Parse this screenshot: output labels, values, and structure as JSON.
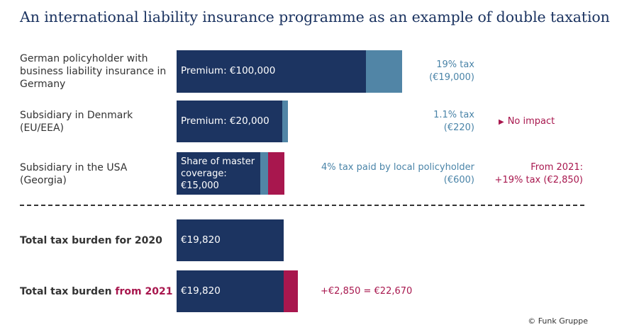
{
  "title": "An international liability insurance programme as an example of double taxation",
  "colors": {
    "navy": "#1c3461",
    "steel": "#5185a6",
    "magenta": "#a8174e",
    "tax_text": "#4a84a8"
  },
  "rows": {
    "germany": {
      "label": "German policyholder with business liability insurance in Germany",
      "bar_label": "Premium: €100,000",
      "tax_line1": "19% tax",
      "tax_line2": "(€19,000)"
    },
    "denmark": {
      "label_line1": "Subsidiary in Denmark",
      "label_line2": "(EU/EEA)",
      "bar_label": "Premium: €20,000",
      "tax_line1": "1.1% tax",
      "tax_line2": "(€220)",
      "note": "No impact",
      "note_icon": "triangle-right-icon"
    },
    "usa": {
      "label_line1": "Subsidiary in the USA",
      "label_line2": "(Georgia)",
      "bar_label": "Share of master coverage: €15,000",
      "tax_line1": "4% tax paid by local policyholder",
      "tax_line2": "(€600)",
      "note_line1": "From 2021:",
      "note_line2": "+19% tax (€2,850)"
    },
    "total2020": {
      "label": "Total tax burden for 2020",
      "bar_label": "€19,820"
    },
    "total2021": {
      "label_prefix": "Total tax burden",
      "label_highlight": "from 2021",
      "bar_label": "€19,820",
      "annotation": "+€2,850 = €22,670"
    }
  },
  "credit": "© Funk Gruppe",
  "chart_data": {
    "type": "bar",
    "orientation": "horizontal",
    "stacked": true,
    "unit": "€",
    "categories": [
      "German policyholder",
      "Subsidiary in Denmark",
      "Subsidiary in the USA",
      "Total tax burden for 2020",
      "Total tax burden from 2021"
    ],
    "series": [
      {
        "name": "Premium",
        "color": "#1c3461",
        "values": [
          100000,
          20000,
          15000,
          null,
          null
        ]
      },
      {
        "name": "Tax",
        "color": "#5185a6",
        "values": [
          19000,
          220,
          600,
          null,
          null
        ]
      },
      {
        "name": "Total tax burden",
        "color": "#1c3461",
        "values": [
          null,
          null,
          null,
          19820,
          19820
        ]
      },
      {
        "name": "Additional tax from 2021",
        "color": "#a8174e",
        "values": [
          null,
          null,
          2850,
          null,
          2850
        ]
      }
    ],
    "annotations": [
      "No impact",
      "From 2021: +19% tax (€2,850)",
      "+€2,850 = €22,670"
    ]
  }
}
